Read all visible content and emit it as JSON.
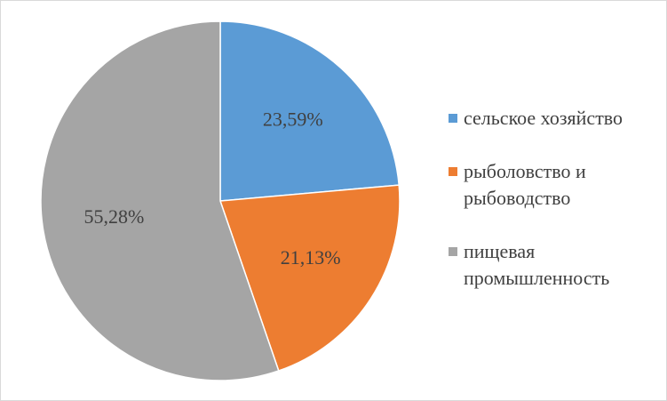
{
  "chart_data": {
    "type": "pie",
    "title": "",
    "slices": [
      {
        "label": "сельское хозяйство",
        "value": 23.59,
        "display": "23,59%",
        "color": "#5b9bd5"
      },
      {
        "label": "рыболовство и\nрыбоводство",
        "value": 21.13,
        "display": "21,13%",
        "color": "#ed7d31"
      },
      {
        "label": "пищевая\nпромышленность",
        "value": 55.28,
        "display": "55,28%",
        "color": "#a5a5a5"
      }
    ],
    "legend_position": "right"
  }
}
